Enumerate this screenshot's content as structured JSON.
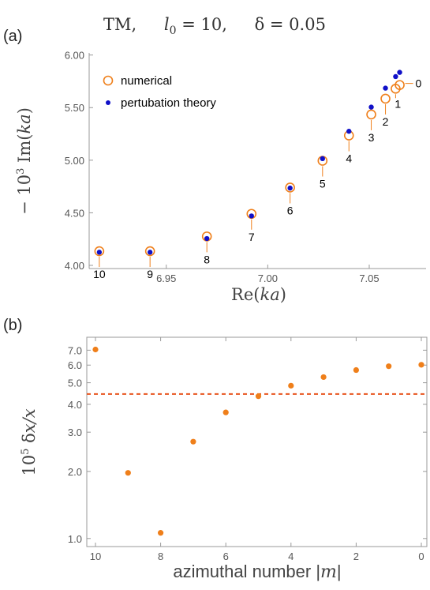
{
  "figure_title": {
    "mode": "TM,",
    "l_part": "l",
    "l_sub": "0",
    "l_value": " = 10,",
    "delta_part": "δ = 0.05"
  },
  "colors": {
    "numerical": "#ef7f1a",
    "perturbation": "#1010c8",
    "dashed": "#e8541e",
    "axis": "#999999",
    "leader": "#ef7f1a"
  },
  "chart_data": [
    {
      "panel_label": "(a)",
      "type": "scatter",
      "xlabel_main": "Re(",
      "xlabel_var": "ka",
      "xlabel_end": ")",
      "ylabel_prefix": "− 10",
      "ylabel_exp": "3",
      "ylabel_main": " Im(",
      "ylabel_var": "ka",
      "ylabel_end": ")",
      "xlim": [
        6.912,
        7.078
      ],
      "ylim": [
        3.97,
        6.02
      ],
      "xticks": [
        {
          "v": 6.95,
          "label": "6.95"
        },
        {
          "v": 7.0,
          "label": "7.00"
        },
        {
          "v": 7.05,
          "label": "7.05"
        }
      ],
      "yticks": [
        {
          "v": 4.0,
          "label": "4.00"
        },
        {
          "v": 4.5,
          "label": "4.50"
        },
        {
          "v": 5.0,
          "label": "5.00"
        },
        {
          "v": 5.5,
          "label": "5.50"
        },
        {
          "v": 6.0,
          "label": "6.00"
        }
      ],
      "legend": {
        "placement": "top-left",
        "entries": [
          {
            "name": "numerical",
            "marker": "open-circle"
          },
          {
            "name": "pertubation theory",
            "marker": "filled-dot"
          }
        ]
      },
      "series": [
        {
          "name": "numerical",
          "points": [
            {
              "m": "10",
              "x": 6.917,
              "y": 4.135
            },
            {
              "m": "9",
              "x": 6.942,
              "y": 4.135
            },
            {
              "m": "8",
              "x": 6.97,
              "y": 4.275
            },
            {
              "m": "7",
              "x": 6.992,
              "y": 4.49
            },
            {
              "m": "6",
              "x": 7.011,
              "y": 4.74
            },
            {
              "m": "5",
              "x": 7.027,
              "y": 4.995
            },
            {
              "m": "4",
              "x": 7.04,
              "y": 5.235
            },
            {
              "m": "3",
              "x": 7.051,
              "y": 5.435
            },
            {
              "m": "2",
              "x": 7.058,
              "y": 5.585
            },
            {
              "m": "1",
              "x": 7.063,
              "y": 5.68
            },
            {
              "m": "0",
              "x": 7.065,
              "y": 5.715
            }
          ]
        },
        {
          "name": "pertubation theory",
          "points": [
            {
              "x": 6.917,
              "y": 4.125
            },
            {
              "x": 6.942,
              "y": 4.125
            },
            {
              "x": 6.97,
              "y": 4.255
            },
            {
              "x": 6.992,
              "y": 4.47
            },
            {
              "x": 7.011,
              "y": 4.735
            },
            {
              "x": 7.027,
              "y": 5.015
            },
            {
              "x": 7.04,
              "y": 5.275
            },
            {
              "x": 7.051,
              "y": 5.505
            },
            {
              "x": 7.058,
              "y": 5.685
            },
            {
              "x": 7.063,
              "y": 5.795
            },
            {
              "x": 7.065,
              "y": 5.835
            }
          ]
        }
      ]
    },
    {
      "panel_label": "(b)",
      "type": "scatter",
      "scale_y": "log",
      "xlabel_main": "azimuthal number |",
      "xlabel_var": "m",
      "xlabel_end": "|",
      "ylabel_prefix": "10",
      "ylabel_exp": "5",
      "ylabel_main": " δ",
      "ylabel_var": "x",
      "ylabel_end": "/x",
      "xlim": [
        10.2,
        -0.2
      ],
      "ylim": [
        0.92,
        8.0
      ],
      "xticks": [
        {
          "v": 10,
          "label": "10"
        },
        {
          "v": 8,
          "label": "8"
        },
        {
          "v": 6,
          "label": "6"
        },
        {
          "v": 4,
          "label": "4"
        },
        {
          "v": 2,
          "label": "2"
        },
        {
          "v": 0,
          "label": "0"
        }
      ],
      "yticks": [
        {
          "v": 1.0,
          "label": "1.0"
        },
        {
          "v": 2.0,
          "label": "2.0"
        },
        {
          "v": 3.0,
          "label": "3.0"
        },
        {
          "v": 4.0,
          "label": "4.0"
        },
        {
          "v": 5.0,
          "label": "5.0"
        },
        {
          "v": 6.0,
          "label": "6.0"
        },
        {
          "v": 7.0,
          "label": "7.0"
        }
      ],
      "hline": 4.45,
      "x": [
        10,
        9,
        8,
        7,
        6,
        5,
        4,
        3,
        2,
        1,
        0
      ],
      "values": [
        7.05,
        1.97,
        1.06,
        2.72,
        3.68,
        4.35,
        4.85,
        5.3,
        5.7,
        5.93,
        6.02
      ]
    }
  ]
}
